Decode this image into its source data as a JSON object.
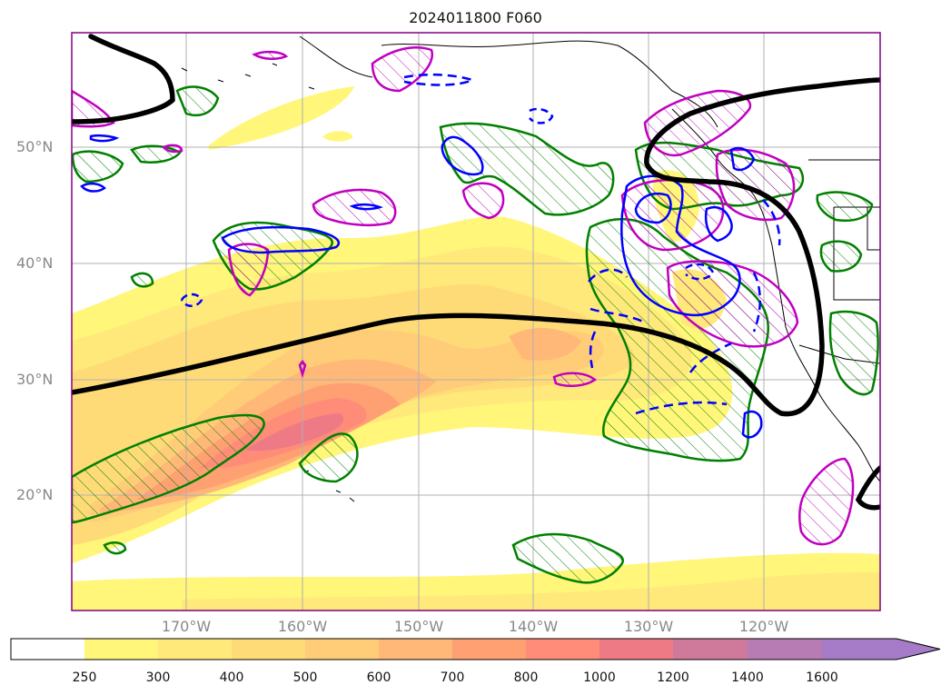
{
  "title": "2024011800 F060",
  "map": {
    "lat_labels": [
      "50°N",
      "40°N",
      "30°N",
      "20°N"
    ],
    "lon_labels": [
      "170°W",
      "160°W",
      "150°W",
      "140°W",
      "130°W",
      "120°W"
    ],
    "colors": {
      "jet_line": "#000000",
      "coast": "#000000",
      "green_contour": "#008000",
      "blue_contour": "#0000ff",
      "magenta_contour": "#c000c0",
      "grid": "#b0b0b0",
      "frame": "#800080"
    }
  },
  "colorbar": {
    "ticks": [
      "250",
      "300",
      "400",
      "500",
      "600",
      "700",
      "800",
      "1000",
      "1200",
      "1400",
      "1600"
    ],
    "colors": [
      "#ffffff",
      "#fff67a",
      "#ffe97a",
      "#ffdb78",
      "#ffcd77",
      "#ffb877",
      "#ffa073",
      "#ff8c78",
      "#ee7a85",
      "#cf7a9b",
      "#b87cb5",
      "#a67cc8"
    ],
    "extend": "max"
  }
}
